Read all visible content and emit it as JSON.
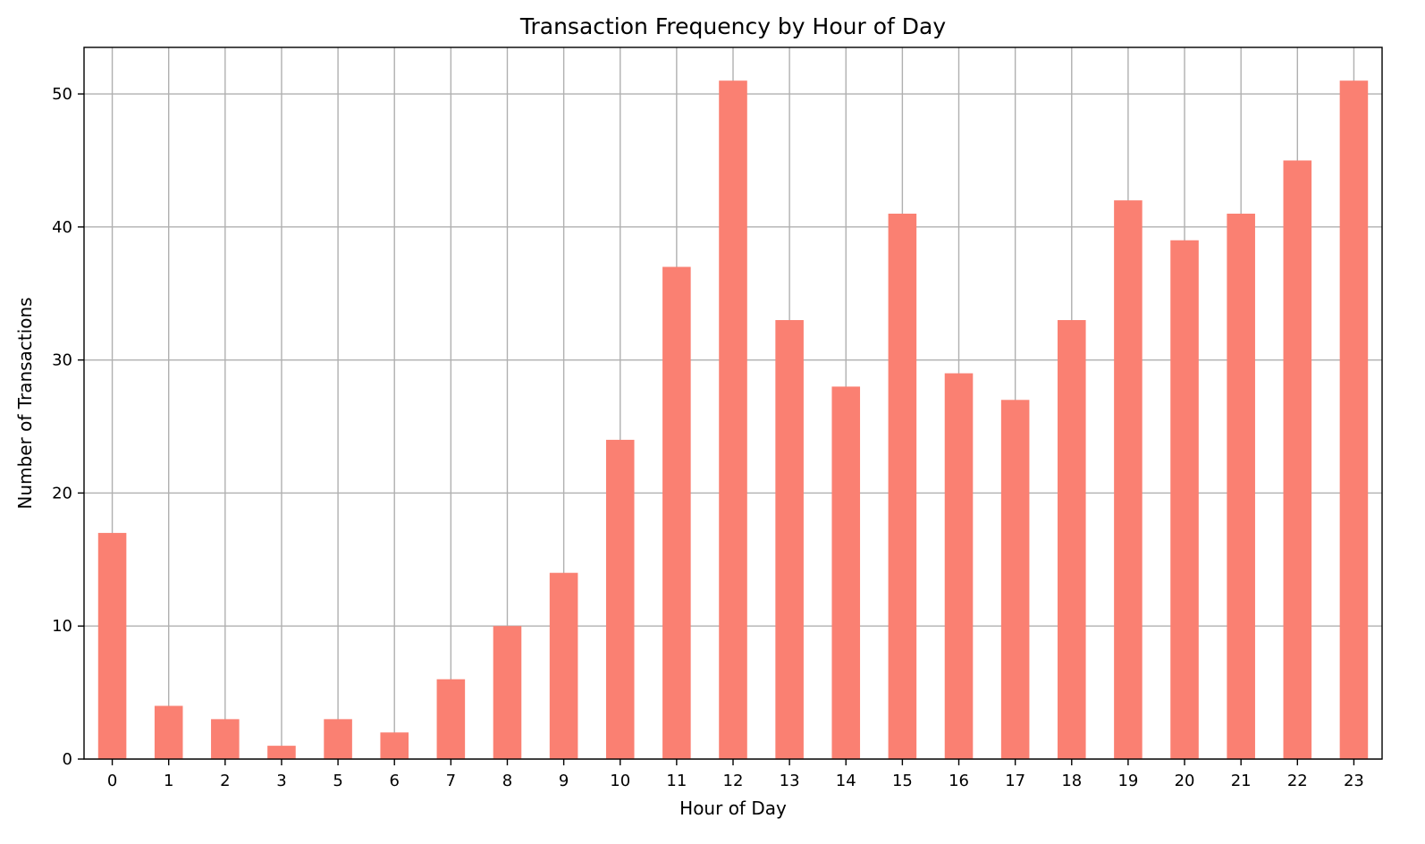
{
  "chart_data": {
    "type": "bar",
    "title": "Transaction Frequency by Hour of Day",
    "xlabel": "Hour of Day",
    "ylabel": "Number of Transactions",
    "categories": [
      "0",
      "1",
      "2",
      "3",
      "5",
      "6",
      "7",
      "8",
      "9",
      "10",
      "11",
      "12",
      "13",
      "14",
      "15",
      "16",
      "17",
      "18",
      "19",
      "20",
      "21",
      "22",
      "23"
    ],
    "values": [
      17,
      4,
      3,
      1,
      3,
      2,
      6,
      10,
      14,
      24,
      37,
      51,
      33,
      28,
      41,
      29,
      27,
      33,
      42,
      39,
      41,
      45,
      51
    ],
    "ylim": [
      0,
      53.5
    ],
    "yticks": [
      0,
      10,
      20,
      30,
      40,
      50
    ],
    "grid": true,
    "bar_color": "#fa8072"
  }
}
